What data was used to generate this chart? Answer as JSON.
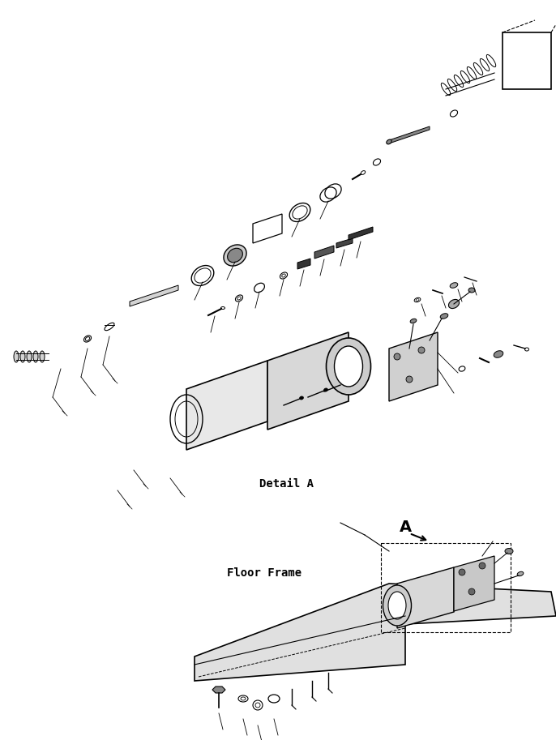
{
  "title": "",
  "background_color": "#ffffff",
  "text_detail_a": "Detail A",
  "text_floor_frame": "Floor Frame",
  "text_A": "A",
  "fig_width": 6.86,
  "fig_height": 9.13,
  "dpi": 100
}
